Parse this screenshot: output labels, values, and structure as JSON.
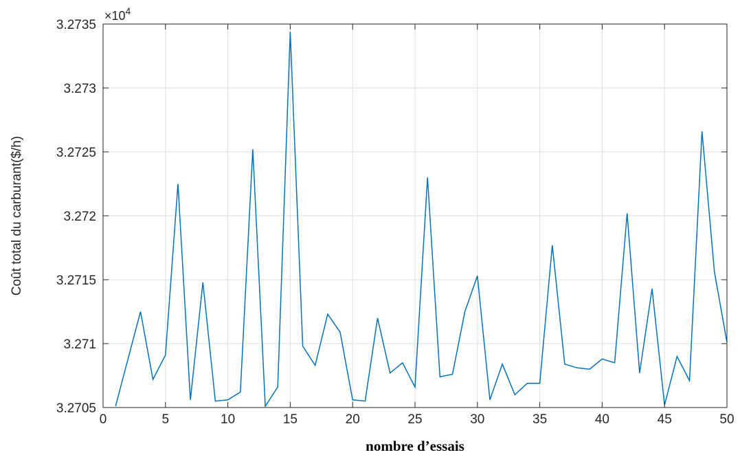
{
  "chart_data": {
    "type": "line",
    "xlabel": "nombre d’essais",
    "ylabel": "Coût total du carburant($/h)",
    "y_multiplier": {
      "base": "×10",
      "exponent": "4"
    },
    "xlim": [
      0,
      50
    ],
    "ylim": [
      3.2705,
      3.2735
    ],
    "x_ticks": [
      0,
      5,
      10,
      15,
      20,
      25,
      30,
      35,
      40,
      45,
      50
    ],
    "x_tick_labels": [
      "0",
      "5",
      "10",
      "15",
      "20",
      "25",
      "30",
      "35",
      "40",
      "45",
      "50"
    ],
    "y_ticks": [
      3.2705,
      3.271,
      3.2715,
      3.272,
      3.2725,
      3.273,
      3.2735
    ],
    "y_tick_labels": [
      "3.2705",
      "3.271",
      "3.2715",
      "3.272",
      "3.2725",
      "3.273",
      "3.2735"
    ],
    "grid": true,
    "line_color": "#0072bd",
    "series": [
      {
        "x": [
          1,
          2,
          3,
          4,
          5,
          6,
          7,
          8,
          9,
          10,
          11,
          12,
          13,
          14,
          15,
          16,
          17,
          18,
          19,
          20,
          21,
          22,
          23,
          24,
          25,
          26,
          27,
          28,
          29,
          30,
          31,
          32,
          33,
          34,
          35,
          36,
          37,
          38,
          39,
          40,
          41,
          42,
          43,
          44,
          45,
          46,
          47,
          48,
          49,
          50
        ],
        "values": [
          3.27051,
          3.27088,
          3.27125,
          3.27072,
          3.27091,
          3.27225,
          3.27056,
          3.27148,
          3.27055,
          3.27056,
          3.27062,
          3.27252,
          3.27051,
          3.27066,
          3.27344,
          3.27098,
          3.27083,
          3.27123,
          3.27109,
          3.27056,
          3.27055,
          3.2712,
          3.27077,
          3.27085,
          3.27066,
          3.2723,
          3.27074,
          3.27076,
          3.27125,
          3.27153,
          3.27056,
          3.27084,
          3.2706,
          3.27069,
          3.27069,
          3.27177,
          3.27084,
          3.27081,
          3.2708,
          3.27088,
          3.27085,
          3.27202,
          3.27077,
          3.27143,
          3.27052,
          3.2709,
          3.27071,
          3.27266,
          3.27156,
          3.27101
        ]
      }
    ]
  }
}
